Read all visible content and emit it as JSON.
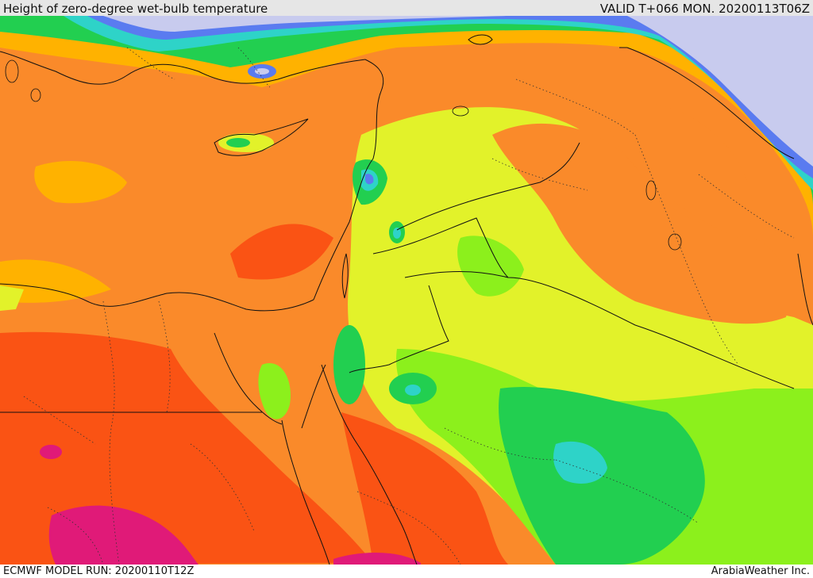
{
  "header": {
    "title": "Height of zero-degree wet-bulb temperature",
    "valid_time": "VALID T+066 MON. 20200113T06Z"
  },
  "footer": {
    "model_run": "ECMWF MODEL RUN: 20200110T12Z",
    "provider": "ArabiaWeather Inc."
  },
  "map": {
    "field": "zero-degree wet-bulb height",
    "palette": [
      "#c8cbee",
      "#5a7bf0",
      "#2ed3c8",
      "#22cf50",
      "#8cf01c",
      "#e2f22a",
      "#ffb200",
      "#fa8a2a",
      "#fa5314",
      "#e01a78"
    ]
  }
}
